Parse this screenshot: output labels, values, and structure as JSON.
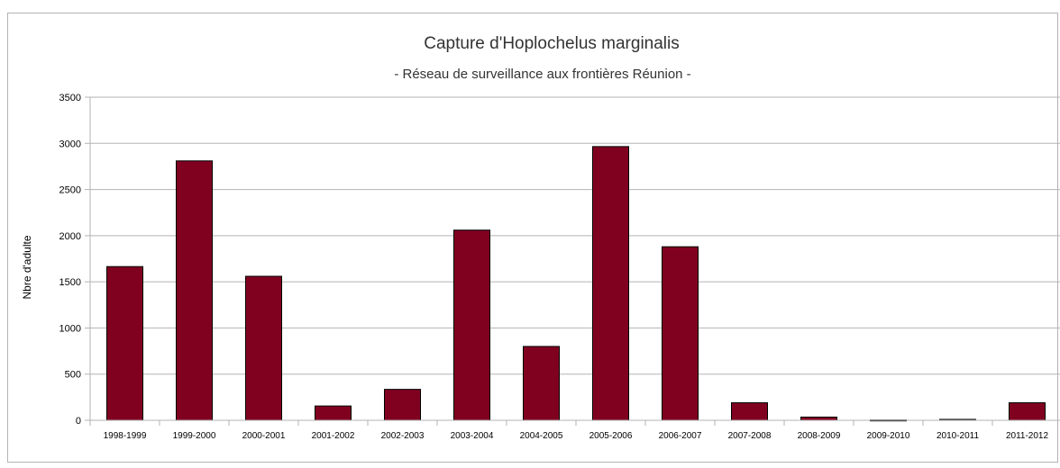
{
  "chart_data": {
    "type": "bar",
    "title": "Capture d'Hoplochelus marginalis",
    "subtitle": "- Réseau de surveillance aux frontières Réunion -",
    "xlabel": "",
    "ylabel": "Nbre d'adulte",
    "ylim": [
      0,
      3500
    ],
    "yticks": [
      0,
      500,
      1000,
      1500,
      2000,
      2500,
      3000,
      3500
    ],
    "grid": true,
    "bar_color": "#800020",
    "categories": [
      "1998-1999",
      "1999-2000",
      "2000-2001",
      "2001-2002",
      "2002-2003",
      "2003-2004",
      "2004-2005",
      "2005-2006",
      "2006-2007",
      "2007-2008",
      "2008-2009",
      "2009-2010",
      "2010-2011",
      "2011-2012"
    ],
    "values": [
      1665,
      2810,
      1560,
      155,
      335,
      2060,
      800,
      2965,
      1880,
      190,
      35,
      3,
      10,
      190
    ]
  }
}
